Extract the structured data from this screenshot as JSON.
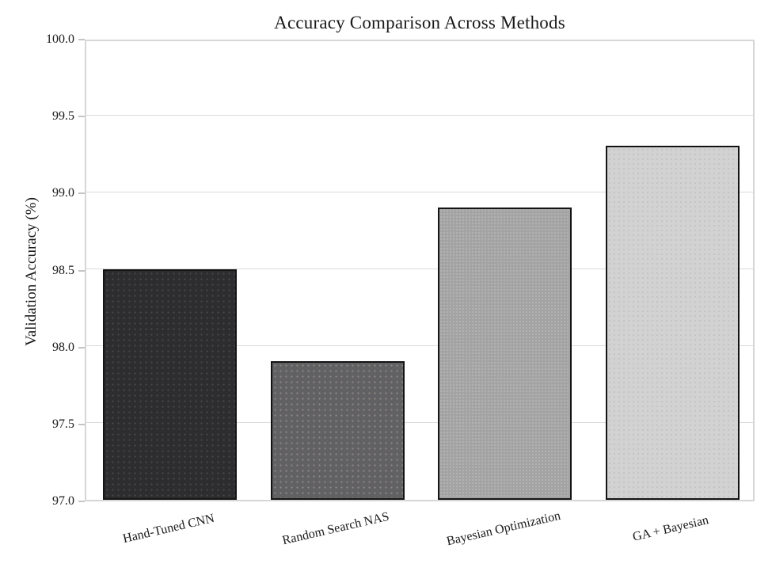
{
  "chart_data": {
    "type": "bar",
    "title": "Accuracy Comparison Across Methods",
    "xlabel": "",
    "ylabel": "Validation Accuracy (%)",
    "categories": [
      "Hand-Tuned CNN",
      "Random Search NAS",
      "Bayesian Optimization",
      "GA + Bayesian"
    ],
    "values": [
      98.5,
      97.9,
      98.9,
      99.3
    ],
    "ylim": [
      97.0,
      100.0
    ],
    "yticks": [
      97.0,
      97.5,
      98.0,
      98.5,
      99.0,
      99.5,
      100.0
    ],
    "ytick_labels": [
      "97.0",
      "97.5",
      "98.0",
      "98.5",
      "99.0",
      "99.5",
      "100.0"
    ],
    "grid": true,
    "legend_position": "none",
    "bar_width_fraction": 0.8,
    "bar_colors": [
      "#2d2d2f",
      "#616164",
      "#a3a3a3",
      "#d2d2d2"
    ],
    "bar_edge_color": "#141414",
    "x_label_rotation_deg": -13
  },
  "colors": {
    "background": "#ffffff",
    "frame": "#d6d6d6",
    "grid": "#dadada",
    "tick": "#c4c4c4",
    "text": "#1a1a1a"
  }
}
